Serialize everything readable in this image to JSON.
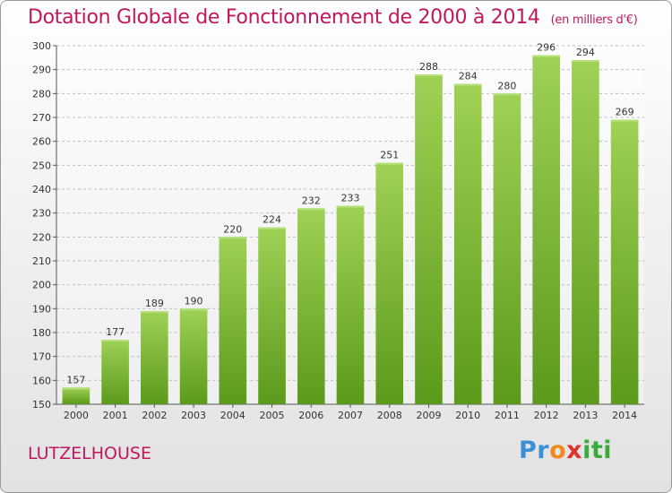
{
  "title": "Dotation Globale de Fonctionnement de 2000 à 2014",
  "subtitle": "(en milliers d'€)",
  "commune": "LUTZELHOUSE",
  "logo": {
    "parts": [
      "Pr",
      "o",
      "x",
      "iti"
    ]
  },
  "colors": {
    "title": "#c0175d",
    "bar_top": "#9fd155",
    "bar_bottom": "#5b9a1a",
    "grid": "#bdbdbd"
  },
  "chart_data": {
    "type": "bar",
    "title": "Dotation Globale de Fonctionnement de 2000 à 2014",
    "subtitle": "(en milliers d'€)",
    "xlabel": "",
    "ylabel": "",
    "categories": [
      "2000",
      "2001",
      "2002",
      "2003",
      "2004",
      "2005",
      "2006",
      "2007",
      "2008",
      "2009",
      "2010",
      "2011",
      "2012",
      "2013",
      "2014"
    ],
    "values": [
      157,
      177,
      189,
      190,
      220,
      224,
      232,
      233,
      251,
      288,
      284,
      280,
      296,
      294,
      269
    ],
    "ylim": [
      150,
      300
    ],
    "yticks": [
      150,
      160,
      170,
      180,
      190,
      200,
      210,
      220,
      230,
      240,
      250,
      260,
      270,
      280,
      290,
      300
    ],
    "grid": true,
    "legend": "none"
  }
}
